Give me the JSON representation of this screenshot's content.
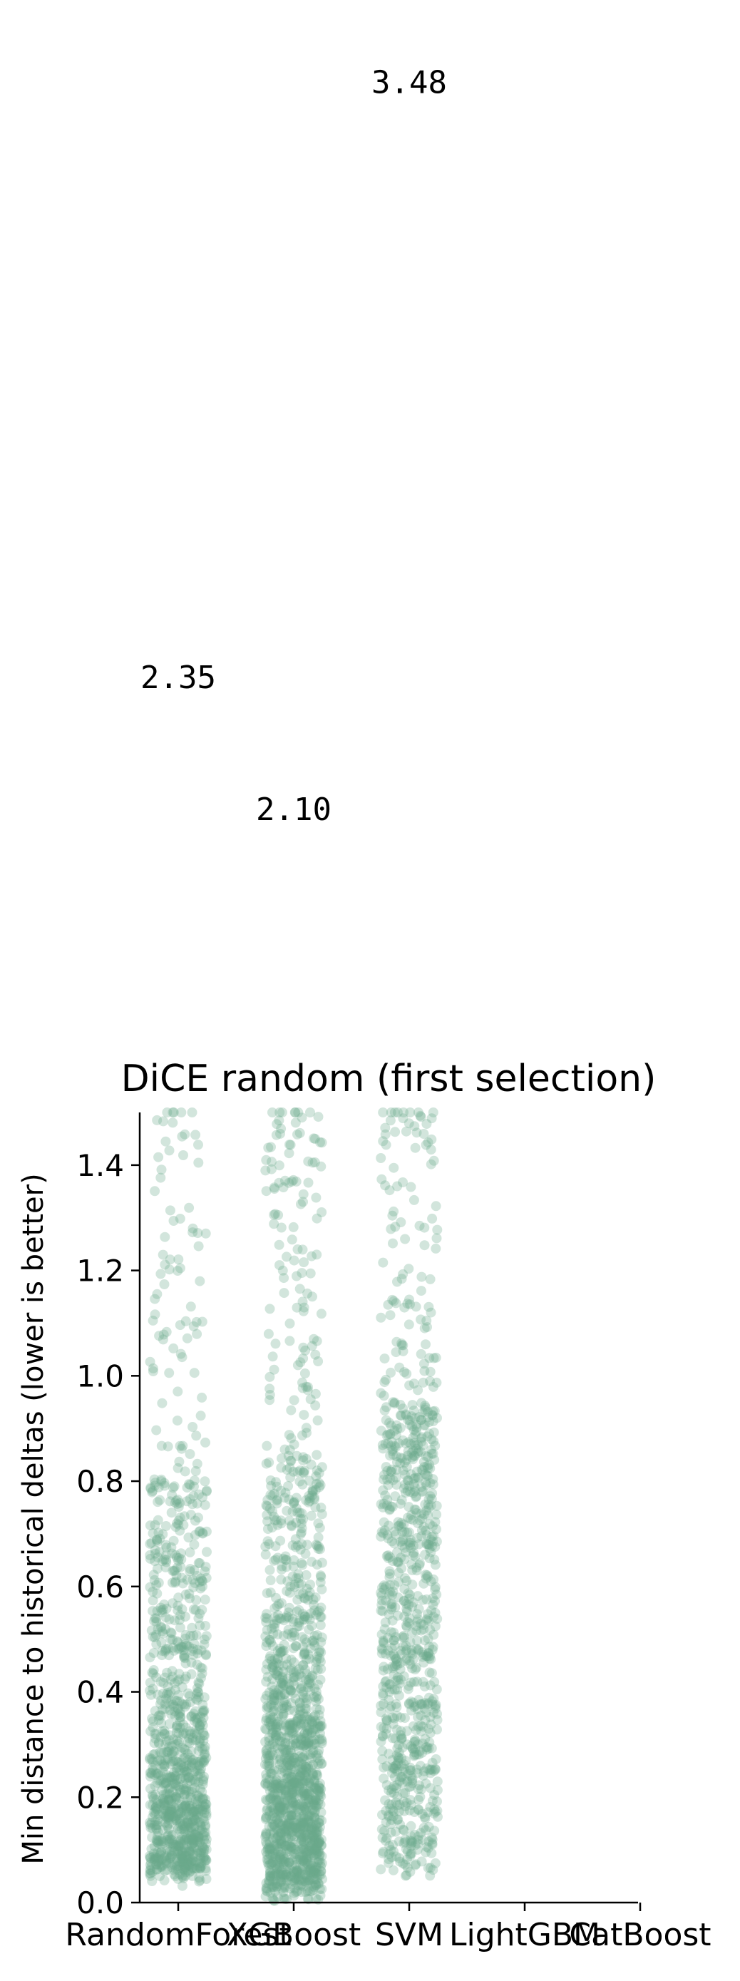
{
  "chart_data": {
    "type": "scatter",
    "title": "DiCE random (first selection)",
    "xlabel": "",
    "ylabel": "Min distance to historical deltas (lower is better)",
    "categories": [
      "RandomForest",
      "XGBoost",
      "SVM",
      "LightGBM",
      "CatBoost"
    ],
    "ylim": [
      0.0,
      1.5
    ],
    "yticks": [
      "0.0",
      "0.2",
      "0.4",
      "0.6",
      "0.8",
      "1.0",
      "1.2",
      "1.4"
    ],
    "grid": false,
    "point_color": "#6aaa8c",
    "point_opacity": 0.3,
    "series": [
      {
        "category": "RandomForest",
        "n_points": 1100,
        "distribution": "right-skewed, dense 0.05–0.5, sparse up to 1.5",
        "outlier_max_label": "2.35",
        "outlier_max_value": 2.35
      },
      {
        "category": "XGBoost",
        "n_points": 1500,
        "distribution": "right-skewed, very dense 0.0–0.5, sparse up to 1.5",
        "outlier_max_label": "2.10",
        "outlier_max_value": 2.1
      },
      {
        "category": "SVM",
        "n_points": 900,
        "distribution": "broad, dense 0.1–0.9, thinning to 1.5",
        "outlier_max_label": "3.48",
        "outlier_max_value": 3.48
      },
      {
        "category": "LightGBM",
        "n_points": 0
      },
      {
        "category": "CatBoost",
        "n_points": 0
      }
    ]
  }
}
